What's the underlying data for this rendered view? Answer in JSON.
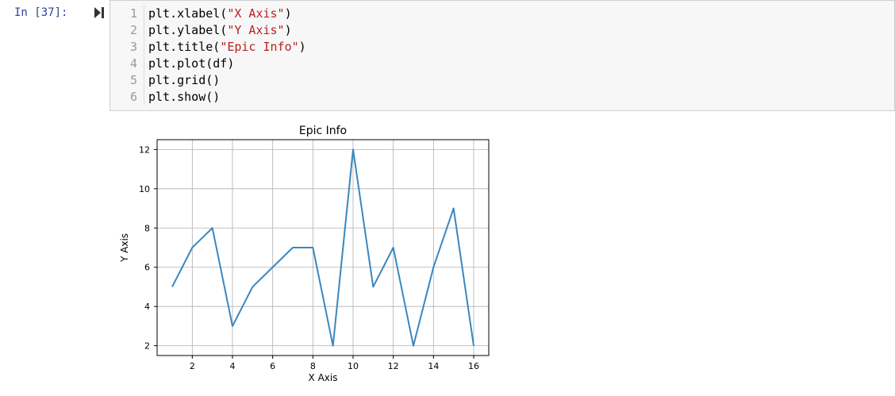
{
  "cell": {
    "prompt": "In [37]:",
    "run_icon": "run-cell-icon",
    "lines": [
      {
        "num": "1",
        "pre": "plt.xlabel(",
        "str": "\"X Axis\"",
        "post": ")"
      },
      {
        "num": "2",
        "pre": "plt.ylabel(",
        "str": "\"Y Axis\"",
        "post": ")"
      },
      {
        "num": "3",
        "pre": "plt.title(",
        "str": "\"Epic Info\"",
        "post": ")"
      },
      {
        "num": "4",
        "pre": "plt.plot(df)",
        "str": "",
        "post": ""
      },
      {
        "num": "5",
        "pre": "plt.grid()",
        "str": "",
        "post": ""
      },
      {
        "num": "6",
        "pre": "plt.show()",
        "str": "",
        "post": ""
      }
    ]
  },
  "colors": {
    "line": "#3a87bf",
    "prompt": "#303f9f",
    "string": "#ba2121"
  },
  "chart_data": {
    "type": "line",
    "title": "Epic Info",
    "xlabel": "X Axis",
    "ylabel": "Y Axis",
    "grid": true,
    "xlim": [
      0.25,
      16.75
    ],
    "ylim": [
      1.5,
      12.5
    ],
    "xticks": [
      "2",
      "4",
      "6",
      "8",
      "10",
      "12",
      "14",
      "16"
    ],
    "yticks": [
      "2",
      "4",
      "6",
      "8",
      "10",
      "12"
    ],
    "series": [
      {
        "x": [
          1,
          2,
          3,
          4,
          5,
          6,
          7,
          8,
          9,
          10,
          11,
          12,
          13,
          14,
          15,
          16
        ],
        "values": [
          5,
          7,
          8,
          3,
          5,
          6,
          7,
          7,
          2,
          12,
          5,
          7,
          2,
          6,
          9,
          2
        ]
      }
    ]
  }
}
